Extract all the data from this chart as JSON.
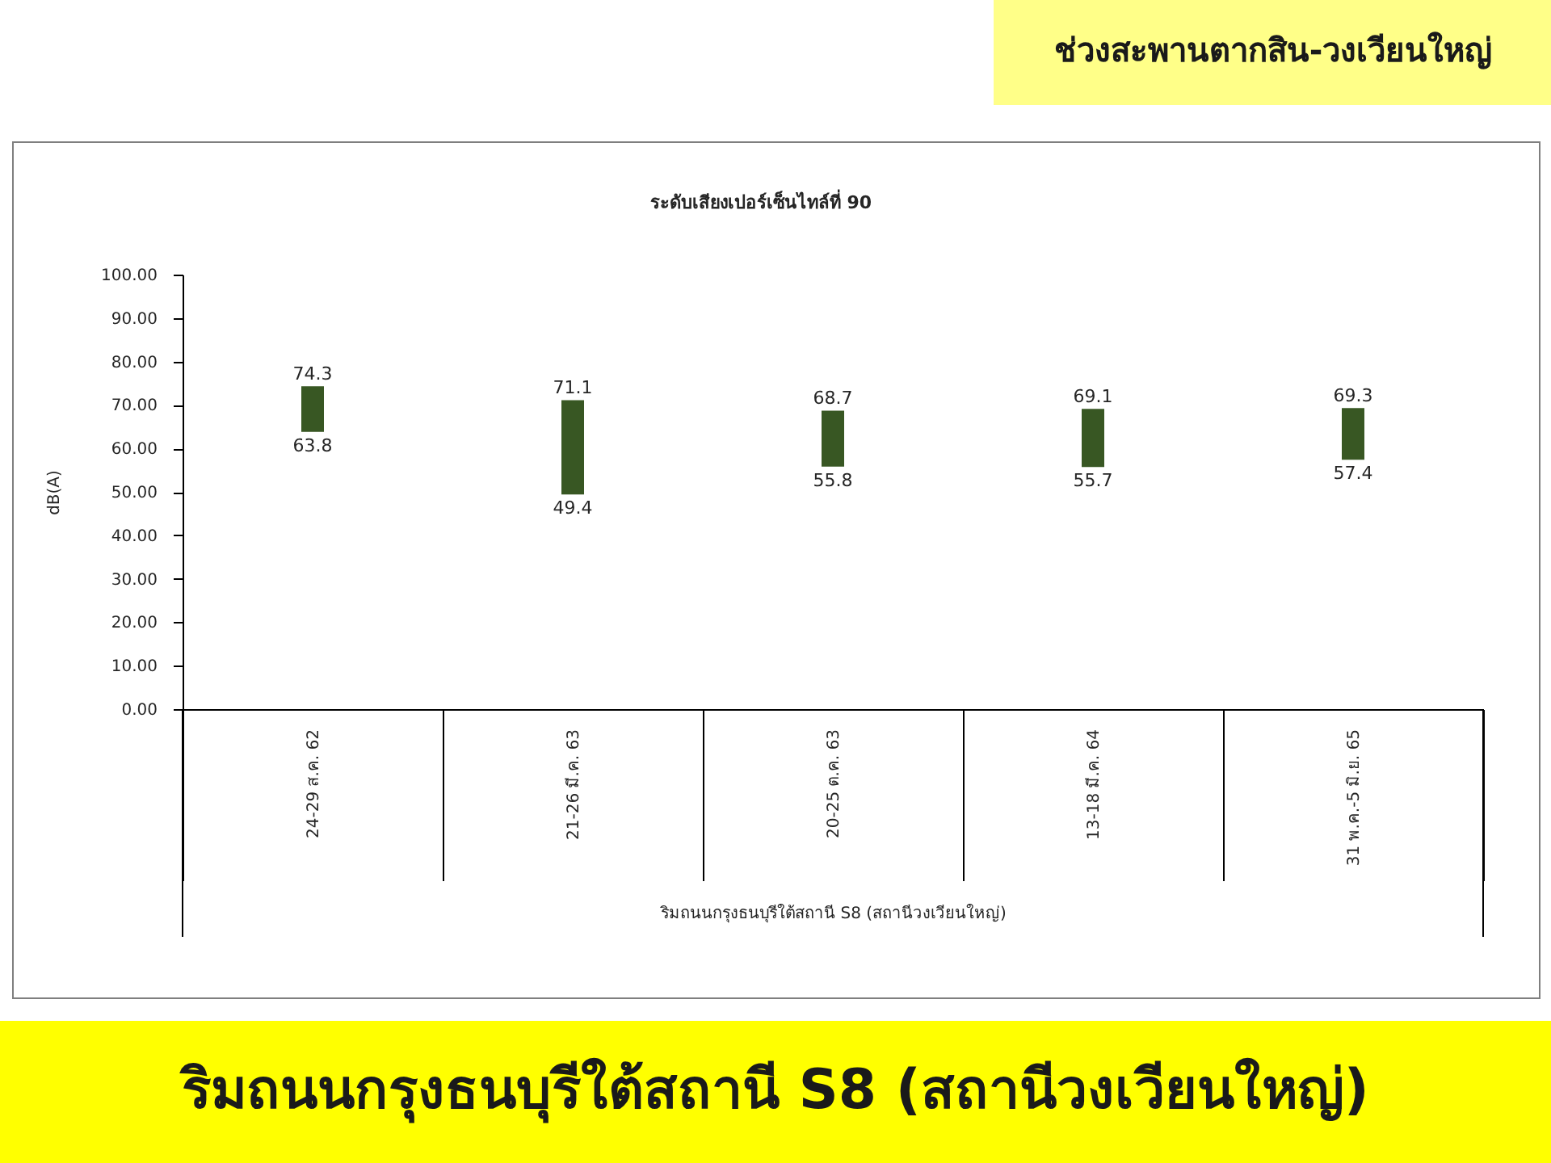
{
  "chart_data": {
    "type": "bar",
    "title": "ระดับเสียงเปอร์เซ็นไทล์ที่ 90",
    "xlabel": "ริมถนนกรุงธนบุรีใต้สถานี S8 (สถานีวงเวียนใหญ่)",
    "ylabel": "dB(A)",
    "categories": [
      "24-29 ส.ค. 62",
      "21-26 มี.ค. 63",
      "20-25 ต.ค. 63",
      "13-18 มี.ค. 64",
      "31 พ.ค.-5 มิ.ย. 65"
    ],
    "base": [
      63.8,
      49.4,
      55.8,
      55.7,
      57.4
    ],
    "values": [
      10.5,
      21.7,
      12.9,
      13.4,
      11.9
    ],
    "color": "#385723",
    "ylim": [
      0,
      100
    ],
    "yticks": [
      {
        "value": 0,
        "label": "0.00"
      },
      {
        "value": 10,
        "label": "10.00"
      },
      {
        "value": 20,
        "label": "20.00"
      },
      {
        "value": 30,
        "label": "30.00"
      },
      {
        "value": 40,
        "label": "40.00"
      },
      {
        "value": 50,
        "label": "50.00"
      },
      {
        "value": 60,
        "label": "60.00"
      },
      {
        "value": 70,
        "label": "70.00"
      },
      {
        "value": 80,
        "label": "80.00"
      },
      {
        "value": 90,
        "label": "90.00"
      },
      {
        "value": 100,
        "label": "100.00"
      }
    ],
    "annotations": [
      "ช่วงสะพานตากสิน-วงเวียนใหญ่",
      "ริมถนนกรุงธนบุรีใต้สถานี S8 (สถานีวงเวียนใหญ่)",
      {
        "text": "74.3",
        "x": "24-29 ส.ค. 62",
        "y": 74.3
      },
      {
        "text": "63.8",
        "x": "24-29 ส.ค. 62",
        "y": 63.8
      },
      {
        "text": "71.1",
        "x": "21-26 มี.ค. 63",
        "y": 71.1
      },
      {
        "text": "49.4",
        "x": "21-26 มี.ค. 63",
        "y": 49.4
      },
      {
        "text": "68.7",
        "x": "20-25 ต.ค. 63",
        "y": 68.7
      },
      {
        "text": "55.8",
        "x": "20-25 ต.ค. 63",
        "y": 55.8
      },
      {
        "text": "69.1",
        "x": "13-18 มี.ค. 64",
        "y": 69.1
      },
      {
        "text": "55.7",
        "x": "13-18 มี.ค. 64",
        "y": 55.7
      },
      {
        "text": "69.3",
        "x": "31 พ.ค.-5 มิ.ย. 65",
        "y": 69.3
      },
      {
        "text": "57.4",
        "x": "31 พ.ค.-5 มิ.ย. 65",
        "y": 57.4
      }
    ]
  }
}
